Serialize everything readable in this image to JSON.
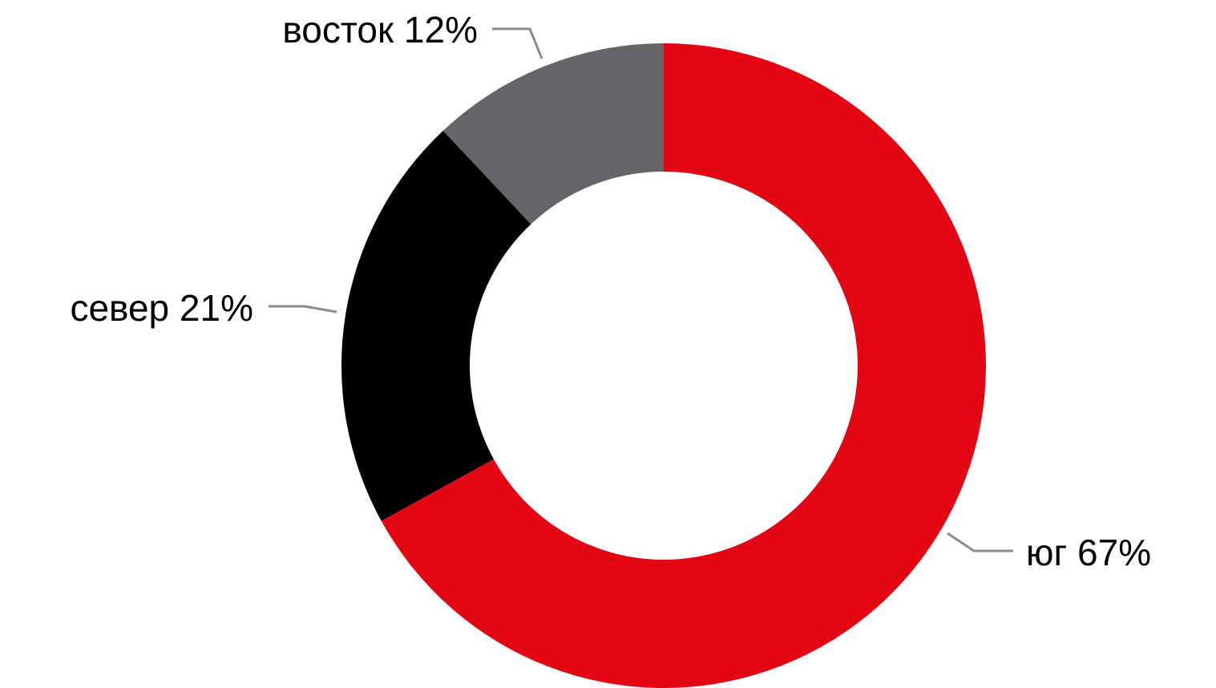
{
  "chart_data": {
    "type": "pie",
    "variant": "donut",
    "start_angle_deg": 0,
    "direction": "clockwise",
    "slices": [
      {
        "label": "юг",
        "value": 67,
        "display": "юг 67%",
        "color": "#e30613"
      },
      {
        "label": "север",
        "value": 21,
        "display": "север 21%",
        "color": "#000000"
      },
      {
        "label": "восток",
        "value": 12,
        "display": "восток 12%",
        "color": "#646569"
      }
    ],
    "legend": "none",
    "leader_line_color": "#8c8c8c"
  }
}
